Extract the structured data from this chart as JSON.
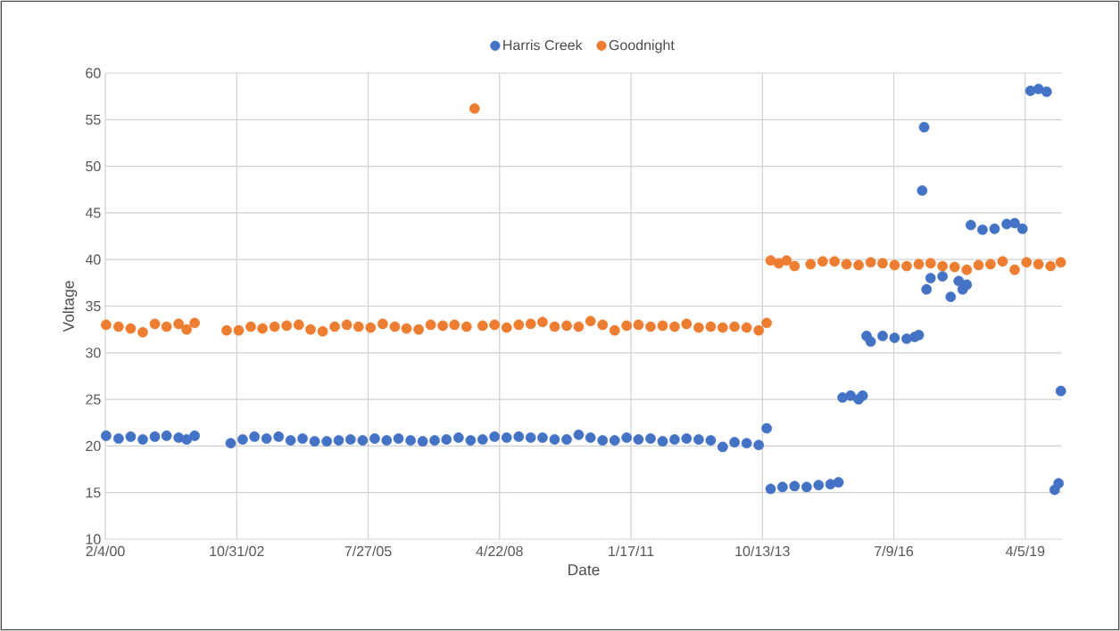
{
  "chart_data": {
    "type": "scatter",
    "xlabel": "Date",
    "ylabel": "Voltage",
    "xlim": [
      "2000-02-04",
      "2020-01-10"
    ],
    "xticks": [
      {
        "value": "2000-02-04",
        "label": "2/4/00"
      },
      {
        "value": "2002-10-31",
        "label": "10/31/02"
      },
      {
        "value": "2005-07-27",
        "label": "7/27/05"
      },
      {
        "value": "2008-04-22",
        "label": "4/22/08"
      },
      {
        "value": "2011-01-17",
        "label": "1/17/11"
      },
      {
        "value": "2013-10-13",
        "label": "10/13/13"
      },
      {
        "value": "2016-07-09",
        "label": "7/9/16"
      },
      {
        "value": "2019-04-05",
        "label": "4/5/19"
      }
    ],
    "ylim": [
      10,
      60
    ],
    "yticks": [
      10,
      15,
      20,
      25,
      30,
      35,
      40,
      45,
      50,
      55,
      60
    ],
    "grid": true,
    "legend": "top",
    "marker": "circle",
    "series": [
      {
        "name": "Harris Creek",
        "color": "#4472c4",
        "x": [
          "2000-02-10",
          "2000-05",
          "2000-08",
          "2000-11",
          "2001-02",
          "2001-05",
          "2001-08",
          "2001-10",
          "2001-12",
          "2002-09",
          "2002-12",
          "2003-03",
          "2003-06",
          "2003-09",
          "2003-12",
          "2004-03",
          "2004-06",
          "2004-09",
          "2004-12",
          "2005-03",
          "2005-06",
          "2005-09",
          "2005-12",
          "2006-03",
          "2006-06",
          "2006-09",
          "2006-12",
          "2007-03",
          "2007-06",
          "2007-09",
          "2007-12",
          "2008-03",
          "2008-06",
          "2008-09",
          "2008-12",
          "2009-03",
          "2009-06",
          "2009-09",
          "2009-12",
          "2010-03",
          "2010-06",
          "2010-09",
          "2010-12",
          "2011-03",
          "2011-06",
          "2011-09",
          "2011-12",
          "2012-03",
          "2012-06",
          "2012-09",
          "2012-12",
          "2013-03",
          "2013-06",
          "2013-09",
          "2013-11",
          "2013-12",
          "2014-03",
          "2014-06",
          "2014-09",
          "2014-12",
          "2015-03",
          "2015-05",
          "2015-06",
          "2015-08",
          "2015-10",
          "2015-11",
          "2015-12",
          "2016-01",
          "2016-04",
          "2016-07",
          "2016-10",
          "2016-12",
          "2017-01",
          "2017-02-10",
          "2017-02-25",
          "2017-03-15",
          "2017-04",
          "2017-07",
          "2017-09",
          "2017-11",
          "2017-12",
          "2018-01",
          "2018-02",
          "2018-05",
          "2018-08",
          "2018-11",
          "2019-01",
          "2019-03",
          "2019-05",
          "2019-07",
          "2019-09",
          "2019-11",
          "2019-12",
          "2020-01-01"
        ],
        "values": [
          21.1,
          20.8,
          21.0,
          20.7,
          21.0,
          21.1,
          20.9,
          20.7,
          21.1,
          20.3,
          20.7,
          21.0,
          20.8,
          21.0,
          20.6,
          20.8,
          20.5,
          20.5,
          20.6,
          20.7,
          20.6,
          20.8,
          20.6,
          20.8,
          20.6,
          20.5,
          20.6,
          20.7,
          20.9,
          20.6,
          20.7,
          21.0,
          20.9,
          21.0,
          20.9,
          20.9,
          20.7,
          20.7,
          21.2,
          20.9,
          20.6,
          20.6,
          20.9,
          20.7,
          20.8,
          20.5,
          20.7,
          20.8,
          20.7,
          20.6,
          19.9,
          20.4,
          20.3,
          20.1,
          21.9,
          15.4,
          15.6,
          15.7,
          15.6,
          15.8,
          15.9,
          16.1,
          25.2,
          25.4,
          25.0,
          25.4,
          31.8,
          31.2,
          31.8,
          31.6,
          31.5,
          31.7,
          31.9,
          47.4,
          54.2,
          36.8,
          38.0,
          38.2,
          36.0,
          37.7,
          36.8,
          37.3,
          43.7,
          43.2,
          43.3,
          43.8,
          43.9,
          43.3,
          58.1,
          58.3,
          58.0,
          15.3,
          16.0,
          25.9
        ]
      },
      {
        "name": "Goodnight",
        "color": "#ed7d31",
        "x": [
          "2000-02-10",
          "2000-05",
          "2000-08",
          "2000-11",
          "2001-02",
          "2001-05",
          "2001-08",
          "2001-10",
          "2001-12",
          "2002-08",
          "2002-11",
          "2003-02",
          "2003-05",
          "2003-08",
          "2003-11",
          "2004-02",
          "2004-05",
          "2004-08",
          "2004-11",
          "2005-02",
          "2005-05",
          "2005-08",
          "2005-11",
          "2006-02",
          "2006-05",
          "2006-08",
          "2006-11",
          "2007-02",
          "2007-05",
          "2007-08",
          "2007-10",
          "2007-12",
          "2008-03",
          "2008-06",
          "2008-09",
          "2008-12",
          "2009-03",
          "2009-06",
          "2009-09",
          "2009-12",
          "2010-03",
          "2010-06",
          "2010-09",
          "2010-12",
          "2011-03",
          "2011-06",
          "2011-09",
          "2011-12",
          "2012-03",
          "2012-06",
          "2012-09",
          "2012-12",
          "2013-03",
          "2013-06",
          "2013-09",
          "2013-11",
          "2013-12",
          "2014-02",
          "2014-04",
          "2014-06",
          "2014-10",
          "2015-01",
          "2015-04",
          "2015-07",
          "2015-10",
          "2016-01",
          "2016-04",
          "2016-07",
          "2016-10",
          "2017-01",
          "2017-04",
          "2017-07",
          "2017-10",
          "2018-01",
          "2018-04",
          "2018-07",
          "2018-10",
          "2019-01",
          "2019-04",
          "2019-07",
          "2019-10",
          "2020-01-01"
        ],
        "values": [
          33.0,
          32.8,
          32.6,
          32.2,
          33.1,
          32.8,
          33.1,
          32.5,
          33.2,
          32.4,
          32.4,
          32.8,
          32.6,
          32.8,
          32.9,
          33.0,
          32.5,
          32.3,
          32.8,
          33.0,
          32.8,
          32.7,
          33.1,
          32.8,
          32.6,
          32.5,
          33.0,
          32.9,
          33.0,
          32.8,
          56.2,
          32.9,
          33.0,
          32.7,
          33.0,
          33.1,
          33.3,
          32.8,
          32.9,
          32.8,
          33.4,
          33.0,
          32.4,
          32.9,
          33.0,
          32.8,
          32.9,
          32.8,
          33.1,
          32.7,
          32.8,
          32.7,
          32.8,
          32.7,
          32.4,
          33.2,
          39.9,
          39.6,
          39.9,
          39.3,
          39.5,
          39.8,
          39.8,
          39.5,
          39.4,
          39.7,
          39.6,
          39.4,
          39.3,
          39.5,
          39.6,
          39.3,
          39.2,
          38.9,
          39.4,
          39.5,
          39.8,
          38.9,
          39.7,
          39.5,
          39.3,
          39.7
        ]
      }
    ]
  }
}
